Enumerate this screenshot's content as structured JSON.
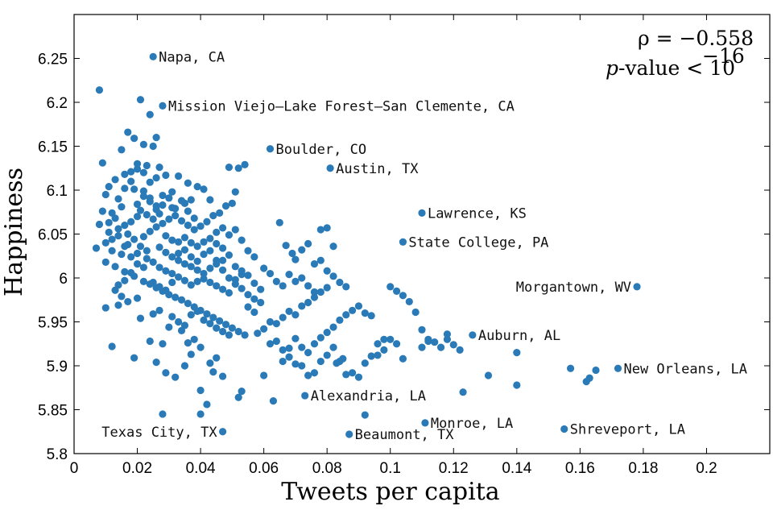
{
  "chart_data": {
    "type": "scatter",
    "title": "",
    "xlabel": "Tweets per capita",
    "ylabel": "Happiness",
    "xlim": [
      0,
      0.22
    ],
    "ylim": [
      5.8,
      6.3
    ],
    "xticks": [
      0,
      0.02,
      0.04,
      0.06,
      0.08,
      0.1,
      0.12,
      0.14,
      0.16,
      0.18,
      0.2
    ],
    "xtick_labels": [
      "0",
      "0.02",
      "0.04",
      "0.06",
      "0.08",
      "0.1",
      "0.12",
      "0.14",
      "0.16",
      "0.18",
      "0.2"
    ],
    "yticks": [
      5.8,
      5.85,
      5.9,
      5.95,
      6.0,
      6.05,
      6.1,
      6.15,
      6.2,
      6.25
    ],
    "ytick_labels": [
      "5.8",
      "5.85",
      "5.9",
      "5.95",
      "6",
      "6.05",
      "6.1",
      "6.15",
      "6.2",
      "6.25"
    ],
    "grid": false,
    "marker_color": "#2a7ab8",
    "stats": {
      "rho": "ρ = −0.558",
      "pvalue_prefix": "p",
      "pvalue_text": "-value < 10",
      "pvalue_exp": "−16"
    },
    "labeled_points": [
      {
        "label": "Napa, CA",
        "x": 0.025,
        "y": 6.252,
        "side": "right"
      },
      {
        "label": "Mission Viejo–Lake Forest–San Clemente, CA",
        "x": 0.028,
        "y": 6.196,
        "side": "right"
      },
      {
        "label": "Boulder, CO",
        "x": 0.062,
        "y": 6.147,
        "side": "right"
      },
      {
        "label": "Austin, TX",
        "x": 0.081,
        "y": 6.125,
        "side": "right"
      },
      {
        "label": "Lawrence, KS",
        "x": 0.11,
        "y": 6.074,
        "side": "right"
      },
      {
        "label": "State College, PA",
        "x": 0.104,
        "y": 6.041,
        "side": "right"
      },
      {
        "label": "Morgantown, WV",
        "x": 0.178,
        "y": 5.99,
        "side": "left"
      },
      {
        "label": "Auburn, AL",
        "x": 0.126,
        "y": 5.935,
        "side": "right"
      },
      {
        "label": "New Orleans, LA",
        "x": 0.172,
        "y": 5.897,
        "side": "right"
      },
      {
        "label": "Alexandria, LA",
        "x": 0.073,
        "y": 5.866,
        "side": "right"
      },
      {
        "label": "Monroe, LA",
        "x": 0.111,
        "y": 5.835,
        "side": "right"
      },
      {
        "label": "Beaumont, TX",
        "x": 0.087,
        "y": 5.822,
        "side": "right"
      },
      {
        "label": "Shreveport, LA",
        "x": 0.155,
        "y": 5.828,
        "side": "right"
      },
      {
        "label": "Texas City, TX",
        "x": 0.047,
        "y": 5.825,
        "side": "left"
      }
    ],
    "points": [
      [
        0.008,
        6.214
      ],
      [
        0.021,
        6.203
      ],
      [
        0.024,
        6.186
      ],
      [
        0.017,
        6.166
      ],
      [
        0.019,
        6.159
      ],
      [
        0.022,
        6.152
      ],
      [
        0.026,
        6.16
      ],
      [
        0.015,
        6.146
      ],
      [
        0.009,
        6.131
      ],
      [
        0.02,
        6.13
      ],
      [
        0.023,
        6.128
      ],
      [
        0.027,
        6.126
      ],
      [
        0.018,
        6.121
      ],
      [
        0.013,
        6.112
      ],
      [
        0.016,
        6.118
      ],
      [
        0.025,
        6.15
      ],
      [
        0.029,
        6.117
      ],
      [
        0.033,
        6.116
      ],
      [
        0.036,
        6.108
      ],
      [
        0.039,
        6.104
      ],
      [
        0.041,
        6.101
      ],
      [
        0.031,
        6.098
      ],
      [
        0.028,
        6.094
      ],
      [
        0.011,
        6.104
      ],
      [
        0.01,
        6.095
      ],
      [
        0.014,
        6.09
      ],
      [
        0.019,
        6.101
      ],
      [
        0.022,
        6.093
      ],
      [
        0.024,
        6.087
      ],
      [
        0.026,
        6.082
      ],
      [
        0.021,
        6.077
      ],
      [
        0.023,
        6.072
      ],
      [
        0.025,
        6.067
      ],
      [
        0.027,
        6.073
      ],
      [
        0.02,
        6.07
      ],
      [
        0.018,
        6.064
      ],
      [
        0.016,
        6.06
      ],
      [
        0.012,
        6.074
      ],
      [
        0.009,
        6.076
      ],
      [
        0.008,
        6.061
      ],
      [
        0.011,
        6.052
      ],
      [
        0.014,
        6.056
      ],
      [
        0.017,
        6.05
      ],
      [
        0.019,
        6.044
      ],
      [
        0.022,
        6.047
      ],
      [
        0.024,
        6.053
      ],
      [
        0.026,
        6.058
      ],
      [
        0.028,
        6.062
      ],
      [
        0.03,
        6.067
      ],
      [
        0.032,
        6.071
      ],
      [
        0.034,
        6.065
      ],
      [
        0.036,
        6.06
      ],
      [
        0.038,
        6.055
      ],
      [
        0.04,
        6.059
      ],
      [
        0.042,
        6.064
      ],
      [
        0.044,
        6.071
      ],
      [
        0.046,
        6.074
      ],
      [
        0.048,
        6.082
      ],
      [
        0.05,
        6.085
      ],
      [
        0.052,
        6.125
      ],
      [
        0.054,
        6.129
      ],
      [
        0.049,
        6.126
      ],
      [
        0.051,
        6.098
      ],
      [
        0.043,
        6.089
      ],
      [
        0.037,
        6.089
      ],
      [
        0.035,
        6.085
      ],
      [
        0.031,
        6.08
      ],
      [
        0.029,
        6.048
      ],
      [
        0.031,
        6.043
      ],
      [
        0.033,
        6.041
      ],
      [
        0.035,
        6.046
      ],
      [
        0.037,
        6.04
      ],
      [
        0.039,
        6.036
      ],
      [
        0.041,
        6.041
      ],
      [
        0.043,
        6.045
      ],
      [
        0.045,
        6.039
      ],
      [
        0.047,
        6.034
      ],
      [
        0.049,
        6.049
      ],
      [
        0.051,
        6.055
      ],
      [
        0.053,
        6.043
      ],
      [
        0.055,
        6.031
      ],
      [
        0.057,
        6.024
      ],
      [
        0.01,
        6.04
      ],
      [
        0.007,
        6.034
      ],
      [
        0.012,
        6.031
      ],
      [
        0.015,
        6.027
      ],
      [
        0.018,
        6.024
      ],
      [
        0.02,
        6.028
      ],
      [
        0.023,
        6.022
      ],
      [
        0.025,
        6.018
      ],
      [
        0.027,
        6.012
      ],
      [
        0.029,
        6.008
      ],
      [
        0.031,
        6.005
      ],
      [
        0.033,
        6.001
      ],
      [
        0.035,
        5.997
      ],
      [
        0.037,
        5.992
      ],
      [
        0.039,
        5.996
      ],
      [
        0.041,
        5.999
      ],
      [
        0.043,
        5.995
      ],
      [
        0.045,
        5.991
      ],
      [
        0.047,
        5.987
      ],
      [
        0.049,
        5.983
      ],
      [
        0.051,
        5.998
      ],
      [
        0.053,
        6.004
      ],
      [
        0.055,
        5.981
      ],
      [
        0.057,
        5.976
      ],
      [
        0.059,
        5.972
      ],
      [
        0.01,
        6.018
      ],
      [
        0.013,
        6.013
      ],
      [
        0.016,
        6.007
      ],
      [
        0.019,
        6.002
      ],
      [
        0.022,
        5.996
      ],
      [
        0.024,
        5.993
      ],
      [
        0.026,
        5.989
      ],
      [
        0.028,
        5.985
      ],
      [
        0.03,
        5.981
      ],
      [
        0.032,
        5.978
      ],
      [
        0.034,
        5.975
      ],
      [
        0.036,
        5.971
      ],
      [
        0.038,
        5.967
      ],
      [
        0.04,
        5.963
      ],
      [
        0.042,
        5.959
      ],
      [
        0.044,
        5.955
      ],
      [
        0.046,
        5.951
      ],
      [
        0.048,
        5.947
      ],
      [
        0.05,
        5.943
      ],
      [
        0.052,
        5.939
      ],
      [
        0.054,
        5.935
      ],
      [
        0.01,
        5.966
      ],
      [
        0.014,
        5.969
      ],
      [
        0.017,
        5.973
      ],
      [
        0.02,
        5.977
      ],
      [
        0.021,
        5.954
      ],
      [
        0.025,
        5.959
      ],
      [
        0.027,
        5.963
      ],
      [
        0.03,
        5.944
      ],
      [
        0.034,
        5.94
      ],
      [
        0.036,
        5.926
      ],
      [
        0.038,
        5.93
      ],
      [
        0.04,
        5.921
      ],
      [
        0.028,
        5.925
      ],
      [
        0.024,
        5.928
      ],
      [
        0.012,
        5.922
      ],
      [
        0.019,
        5.909
      ],
      [
        0.026,
        5.904
      ],
      [
        0.029,
        5.892
      ],
      [
        0.032,
        5.887
      ],
      [
        0.035,
        5.9
      ],
      [
        0.037,
        5.913
      ],
      [
        0.043,
        5.903
      ],
      [
        0.045,
        5.909
      ],
      [
        0.047,
        5.888
      ],
      [
        0.04,
        5.872
      ],
      [
        0.042,
        5.856
      ],
      [
        0.04,
        5.845
      ],
      [
        0.028,
        5.845
      ],
      [
        0.044,
        5.893
      ],
      [
        0.052,
        5.864
      ],
      [
        0.053,
        5.871
      ],
      [
        0.058,
        5.937
      ],
      [
        0.06,
        5.942
      ],
      [
        0.062,
        5.95
      ],
      [
        0.064,
        5.948
      ],
      [
        0.066,
        5.955
      ],
      [
        0.068,
        5.962
      ],
      [
        0.07,
        5.958
      ],
      [
        0.072,
        5.968
      ],
      [
        0.074,
        5.972
      ],
      [
        0.076,
        5.978
      ],
      [
        0.078,
        5.984
      ],
      [
        0.08,
        5.989
      ],
      [
        0.062,
        5.925
      ],
      [
        0.064,
        5.928
      ],
      [
        0.066,
        5.918
      ],
      [
        0.068,
        5.91
      ],
      [
        0.07,
        5.902
      ],
      [
        0.072,
        5.921
      ],
      [
        0.074,
        5.915
      ],
      [
        0.076,
        5.925
      ],
      [
        0.078,
        5.932
      ],
      [
        0.08,
        5.938
      ],
      [
        0.082,
        5.944
      ],
      [
        0.084,
        5.952
      ],
      [
        0.086,
        5.958
      ],
      [
        0.088,
        5.963
      ],
      [
        0.09,
        5.968
      ],
      [
        0.092,
        5.96
      ],
      [
        0.094,
        5.957
      ],
      [
        0.06,
        5.889
      ],
      [
        0.063,
        5.86
      ],
      [
        0.066,
        5.905
      ],
      [
        0.068,
        5.92
      ],
      [
        0.07,
        5.931
      ],
      [
        0.072,
        5.9
      ],
      [
        0.074,
        5.889
      ],
      [
        0.076,
        5.892
      ],
      [
        0.078,
        5.905
      ],
      [
        0.08,
        5.912
      ],
      [
        0.082,
        5.921
      ],
      [
        0.084,
        5.905
      ],
      [
        0.086,
        5.89
      ],
      [
        0.088,
        5.892
      ],
      [
        0.09,
        5.887
      ],
      [
        0.092,
        5.903
      ],
      [
        0.094,
        5.911
      ],
      [
        0.096,
        5.925
      ],
      [
        0.098,
        5.93
      ],
      [
        0.065,
        6.063
      ],
      [
        0.067,
        6.037
      ],
      [
        0.069,
        6.028
      ],
      [
        0.07,
        6.021
      ],
      [
        0.072,
        6.032
      ],
      [
        0.074,
        6.039
      ],
      [
        0.076,
        6.016
      ],
      [
        0.078,
        6.02
      ],
      [
        0.08,
        6.008
      ],
      [
        0.082,
        6.002
      ],
      [
        0.084,
        5.995
      ],
      [
        0.086,
        5.99
      ],
      [
        0.06,
        6.011
      ],
      [
        0.062,
        6.005
      ],
      [
        0.064,
        5.996
      ],
      [
        0.066,
        5.991
      ],
      [
        0.068,
        6.004
      ],
      [
        0.07,
        5.996
      ],
      [
        0.072,
        6.0
      ],
      [
        0.074,
        5.991
      ],
      [
        0.076,
        5.984
      ],
      [
        0.078,
        6.055
      ],
      [
        0.08,
        6.057
      ],
      [
        0.082,
        6.036
      ],
      [
        0.1,
        5.99
      ],
      [
        0.102,
        5.985
      ],
      [
        0.104,
        5.98
      ],
      [
        0.106,
        5.973
      ],
      [
        0.108,
        5.961
      ],
      [
        0.11,
        5.941
      ],
      [
        0.112,
        5.93
      ],
      [
        0.114,
        5.927
      ],
      [
        0.116,
        5.921
      ],
      [
        0.118,
        5.936
      ],
      [
        0.12,
        5.924
      ],
      [
        0.122,
        5.918
      ],
      [
        0.1,
        5.93
      ],
      [
        0.102,
        5.925
      ],
      [
        0.098,
        5.918
      ],
      [
        0.096,
        5.912
      ],
      [
        0.104,
        5.908
      ],
      [
        0.11,
        5.921
      ],
      [
        0.112,
        5.928
      ],
      [
        0.118,
        5.93
      ],
      [
        0.123,
        5.87
      ],
      [
        0.131,
        5.889
      ],
      [
        0.14,
        5.915
      ],
      [
        0.14,
        5.878
      ],
      [
        0.157,
        5.897
      ],
      [
        0.162,
        5.882
      ],
      [
        0.163,
        5.886
      ],
      [
        0.165,
        5.895
      ],
      [
        0.092,
        5.844
      ],
      [
        0.083,
        5.903
      ],
      [
        0.085,
        5.908
      ],
      [
        0.016,
        6.102
      ],
      [
        0.018,
        6.11
      ],
      [
        0.02,
        6.084
      ],
      [
        0.022,
        6.099
      ],
      [
        0.024,
        6.091
      ],
      [
        0.026,
        6.078
      ],
      [
        0.028,
        6.083
      ],
      [
        0.03,
        6.091
      ],
      [
        0.032,
        6.079
      ],
      [
        0.034,
        6.088
      ],
      [
        0.036,
        6.076
      ],
      [
        0.038,
        6.068
      ],
      [
        0.015,
        6.081
      ],
      [
        0.013,
        6.068
      ],
      [
        0.011,
        6.063
      ],
      [
        0.017,
        6.038
      ],
      [
        0.021,
        6.036
      ],
      [
        0.023,
        6.031
      ],
      [
        0.027,
        6.035
      ],
      [
        0.029,
        6.029
      ],
      [
        0.031,
        6.024
      ],
      [
        0.033,
        6.02
      ],
      [
        0.035,
        6.016
      ],
      [
        0.037,
        6.013
      ],
      [
        0.039,
        6.009
      ],
      [
        0.041,
        6.005
      ],
      [
        0.043,
        6.011
      ],
      [
        0.045,
        6.016
      ],
      [
        0.047,
        6.02
      ],
      [
        0.049,
        6.026
      ],
      [
        0.051,
        6.013
      ],
      [
        0.053,
        6.008
      ],
      [
        0.055,
        6.003
      ],
      [
        0.057,
        5.994
      ],
      [
        0.059,
        5.987
      ],
      [
        0.022,
        6.012
      ],
      [
        0.02,
        6.016
      ],
      [
        0.018,
        6.006
      ],
      [
        0.016,
        5.997
      ],
      [
        0.014,
        5.992
      ],
      [
        0.013,
        5.986
      ],
      [
        0.015,
        5.979
      ],
      [
        0.012,
        6.044
      ],
      [
        0.014,
        6.048
      ],
      [
        0.016,
        6.036
      ],
      [
        0.024,
        6.109
      ],
      [
        0.026,
        6.114
      ],
      [
        0.022,
        6.12
      ],
      [
        0.02,
        6.124
      ],
      [
        0.045,
        6.02
      ],
      [
        0.047,
        6.009
      ],
      [
        0.049,
        6.0
      ],
      [
        0.051,
        5.993
      ],
      [
        0.053,
        5.988
      ],
      [
        0.055,
        5.967
      ],
      [
        0.057,
        5.961
      ],
      [
        0.031,
        5.956
      ],
      [
        0.033,
        5.95
      ],
      [
        0.035,
        5.946
      ],
      [
        0.037,
        5.958
      ],
      [
        0.039,
        5.962
      ],
      [
        0.041,
        5.952
      ],
      [
        0.043,
        5.948
      ],
      [
        0.045,
        5.943
      ],
      [
        0.047,
        5.939
      ],
      [
        0.049,
        5.935
      ],
      [
        0.025,
        5.995
      ],
      [
        0.027,
        5.99
      ],
      [
        0.029,
        5.986
      ],
      [
        0.031,
        5.995
      ],
      [
        0.033,
        6.028
      ],
      [
        0.035,
        6.032
      ],
      [
        0.037,
        6.024
      ],
      [
        0.039,
        6.019
      ],
      [
        0.041,
        6.027
      ],
      [
        0.043,
        6.031
      ],
      [
        0.045,
        6.052
      ],
      [
        0.047,
        6.057
      ]
    ]
  }
}
